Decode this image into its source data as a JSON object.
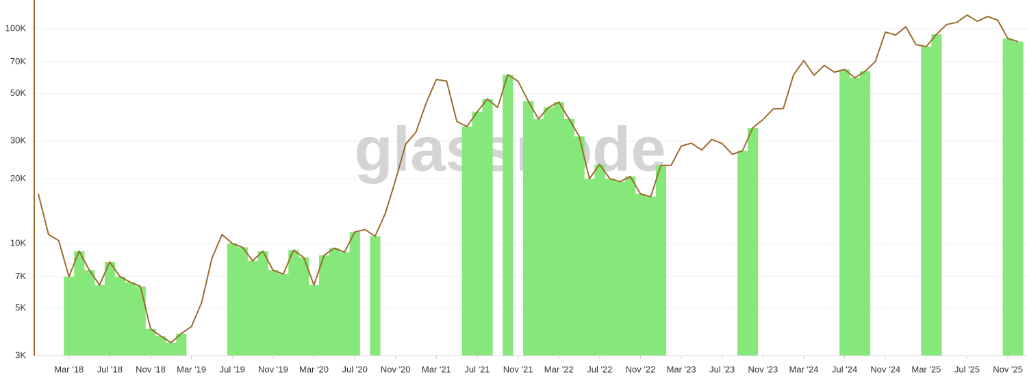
{
  "chart_data": {
    "type": "line",
    "watermark": "glassnode",
    "log_scale": true,
    "grid": true,
    "xlim": [
      "2017-12",
      "2025-12"
    ],
    "ylim": [
      3000,
      136000
    ],
    "yticks": [
      {
        "value": 3000,
        "label": "3K"
      },
      {
        "value": 5000,
        "label": "5K"
      },
      {
        "value": 7000,
        "label": "7K"
      },
      {
        "value": 10000,
        "label": "10K"
      },
      {
        "value": 20000,
        "label": "20K"
      },
      {
        "value": 30000,
        "label": "30K"
      },
      {
        "value": 50000,
        "label": "50K"
      },
      {
        "value": 70000,
        "label": "70K"
      },
      {
        "value": 100000,
        "label": "100K"
      }
    ],
    "xticks": [
      {
        "value": "2018-03",
        "label": "Mar '18"
      },
      {
        "value": "2018-07",
        "label": "Jul '18"
      },
      {
        "value": "2018-11",
        "label": "Nov '18"
      },
      {
        "value": "2019-03",
        "label": "Mar '19"
      },
      {
        "value": "2019-07",
        "label": "Jul '19"
      },
      {
        "value": "2019-11",
        "label": "Nov '19"
      },
      {
        "value": "2020-03",
        "label": "Mar '20"
      },
      {
        "value": "2020-07",
        "label": "Jul '20"
      },
      {
        "value": "2020-11",
        "label": "Nov '20"
      },
      {
        "value": "2021-03",
        "label": "Mar '21"
      },
      {
        "value": "2021-07",
        "label": "Jul '21"
      },
      {
        "value": "2021-11",
        "label": "Nov '21"
      },
      {
        "value": "2022-03",
        "label": "Mar '22"
      },
      {
        "value": "2022-07",
        "label": "Jul '22"
      },
      {
        "value": "2022-11",
        "label": "Nov '22"
      },
      {
        "value": "2023-03",
        "label": "Mar '23"
      },
      {
        "value": "2023-07",
        "label": "Jul '23"
      },
      {
        "value": "2023-11",
        "label": "Nov '23"
      },
      {
        "value": "2024-03",
        "label": "Mar '24"
      },
      {
        "value": "2024-07",
        "label": "Jul '24"
      },
      {
        "value": "2024-11",
        "label": "Nov '24"
      },
      {
        "value": "2025-03",
        "label": "Mar '25"
      },
      {
        "value": "2025-07",
        "label": "Jul '25"
      },
      {
        "value": "2025-11",
        "label": "Nov '25"
      }
    ],
    "x": [
      "2017-12",
      "2018-01",
      "2018-02",
      "2018-03",
      "2018-04",
      "2018-05",
      "2018-06",
      "2018-07",
      "2018-08",
      "2018-09",
      "2018-10",
      "2018-11",
      "2018-12",
      "2019-01",
      "2019-02",
      "2019-03",
      "2019-04",
      "2019-05",
      "2019-06",
      "2019-07",
      "2019-08",
      "2019-09",
      "2019-10",
      "2019-11",
      "2019-12",
      "2020-01",
      "2020-02",
      "2020-03",
      "2020-04",
      "2020-05",
      "2020-06",
      "2020-07",
      "2020-08",
      "2020-09",
      "2020-10",
      "2020-11",
      "2020-12",
      "2021-01",
      "2021-02",
      "2021-03",
      "2021-04",
      "2021-05",
      "2021-06",
      "2021-07",
      "2021-08",
      "2021-09",
      "2021-10",
      "2021-11",
      "2021-12",
      "2022-01",
      "2022-02",
      "2022-03",
      "2022-04",
      "2022-05",
      "2022-06",
      "2022-07",
      "2022-08",
      "2022-09",
      "2022-10",
      "2022-11",
      "2022-12",
      "2023-01",
      "2023-02",
      "2023-03",
      "2023-04",
      "2023-05",
      "2023-06",
      "2023-07",
      "2023-08",
      "2023-09",
      "2023-10",
      "2023-11",
      "2023-12",
      "2024-01",
      "2024-02",
      "2024-03",
      "2024-04",
      "2024-05",
      "2024-06",
      "2024-07",
      "2024-08",
      "2024-09",
      "2024-10",
      "2024-11",
      "2024-12",
      "2025-01",
      "2025-02",
      "2025-03",
      "2025-04",
      "2025-05",
      "2025-06",
      "2025-07",
      "2025-08",
      "2025-09",
      "2025-10",
      "2025-11",
      "2025-12"
    ],
    "series": [
      {
        "type": "line",
        "color": "#9b6a2c",
        "values": [
          17000,
          11000,
          10300,
          7000,
          9200,
          7500,
          6400,
          8200,
          7000,
          6600,
          6300,
          4000,
          3700,
          3450,
          3800,
          4100,
          5300,
          8500,
          11000,
          10000,
          9600,
          8300,
          9200,
          7500,
          7200,
          9300,
          8600,
          6400,
          8800,
          9500,
          9100,
          11300,
          11600,
          10800,
          13800,
          19700,
          29000,
          33000,
          45000,
          58000,
          57000,
          37000,
          35000,
          41000,
          47000,
          43000,
          61000,
          57000,
          46000,
          38000,
          43000,
          45500,
          38000,
          31500,
          20000,
          23300,
          20000,
          19400,
          20500,
          17000,
          16500,
          23100,
          23100,
          28400,
          29300,
          27200,
          30500,
          29200,
          26000,
          27000,
          34500,
          37700,
          42300,
          42500,
          61000,
          71000,
          60600,
          67500,
          62700,
          64600,
          59000,
          63300,
          70200,
          96400,
          93400,
          102000,
          84300,
          82500,
          94200,
          104600,
          107000,
          115700,
          108200,
          114000,
          109500,
          90000,
          87000
        ]
      },
      {
        "type": "bar",
        "color": "#86e87a",
        "values": [
          null,
          null,
          null,
          7000,
          9200,
          7500,
          6400,
          8200,
          7000,
          6600,
          6300,
          4000,
          3700,
          3450,
          3800,
          null,
          null,
          null,
          null,
          10000,
          9600,
          8300,
          9200,
          7500,
          7200,
          9300,
          8600,
          6400,
          8800,
          9500,
          9100,
          11300,
          null,
          10800,
          null,
          null,
          null,
          null,
          null,
          null,
          null,
          null,
          35000,
          41000,
          47000,
          null,
          61000,
          null,
          46000,
          38000,
          43000,
          45500,
          38000,
          31500,
          20000,
          23300,
          20000,
          19400,
          20500,
          17000,
          16500,
          23100,
          null,
          null,
          null,
          null,
          null,
          null,
          null,
          27000,
          34500,
          null,
          null,
          null,
          null,
          null,
          null,
          null,
          null,
          64600,
          59000,
          63300,
          null,
          null,
          null,
          null,
          null,
          82500,
          94200,
          null,
          null,
          null,
          null,
          null,
          null,
          90000,
          87000
        ]
      }
    ]
  }
}
